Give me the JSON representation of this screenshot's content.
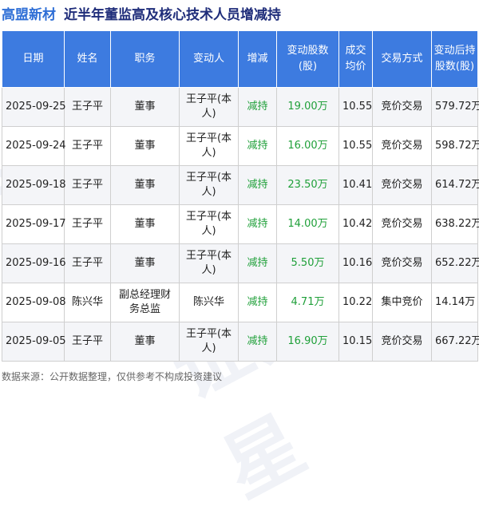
{
  "header": {
    "company": "高盟新材",
    "subject": "近半年董监高及核心技术人员增减持"
  },
  "columns": [
    "日期",
    "姓名",
    "职务",
    "变动人",
    "增减",
    "变动股数(股)",
    "成交均价",
    "交易方式",
    "变动后持股数(股)"
  ],
  "rows": [
    {
      "date": "2025-09-25",
      "name": "王子平",
      "role": "董事",
      "changer": "王子平(本人)",
      "action": "减持",
      "qty": "19.00万",
      "price": "10.55",
      "method": "竞价交易",
      "holding": "579.72万"
    },
    {
      "date": "2025-09-24",
      "name": "王子平",
      "role": "董事",
      "changer": "王子平(本人)",
      "action": "减持",
      "qty": "16.00万",
      "price": "10.55",
      "method": "竞价交易",
      "holding": "598.72万"
    },
    {
      "date": "2025-09-18",
      "name": "王子平",
      "role": "董事",
      "changer": "王子平(本人)",
      "action": "减持",
      "qty": "23.50万",
      "price": "10.41",
      "method": "竞价交易",
      "holding": "614.72万"
    },
    {
      "date": "2025-09-17",
      "name": "王子平",
      "role": "董事",
      "changer": "王子平(本人)",
      "action": "减持",
      "qty": "14.00万",
      "price": "10.42",
      "method": "竞价交易",
      "holding": "638.22万"
    },
    {
      "date": "2025-09-16",
      "name": "王子平",
      "role": "董事",
      "changer": "王子平(本人)",
      "action": "减持",
      "qty": "5.50万",
      "price": "10.16",
      "method": "竞价交易",
      "holding": "652.22万"
    },
    {
      "date": "2025-09-08",
      "name": "陈兴华",
      "role": "副总经理财务总监",
      "changer": "陈兴华",
      "action": "减持",
      "qty": "4.71万",
      "price": "10.22",
      "method": "集中竞价",
      "holding": "14.14万"
    },
    {
      "date": "2025-09-05",
      "name": "王子平",
      "role": "董事",
      "changer": "王子平(本人)",
      "action": "减持",
      "qty": "16.90万",
      "price": "10.15",
      "method": "竞价交易",
      "holding": "667.22万"
    }
  ],
  "footer": "数据来源：公开数据整理，仅供参考不构成投资建议",
  "watermark": "证券之星",
  "colors": {
    "header_bg": "#3d7be0",
    "accent_title": "#2f6fd6",
    "reduce_green": "#20a03a"
  }
}
